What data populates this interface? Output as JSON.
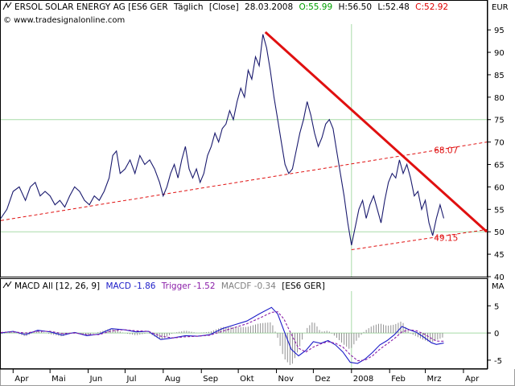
{
  "header": {
    "title": "ERSOL SOLAR ENERGY AG [ES6 GER",
    "interval": "Täglich",
    "mode": "[Close]",
    "date": "28.03.2008",
    "open": "O:55.99",
    "high": "H:56.50",
    "low": "L:52.48",
    "close": "C:52.92",
    "website": "© www.tradesignalonline.com",
    "currency": "EUR"
  },
  "macd_header": {
    "name": "MACD All [12, 26, 9]",
    "macd": "MACD -1.86",
    "trigger": "Trigger -1.52",
    "macdf": "MACDF -0.34",
    "symbol": "[ES6 GER]",
    "axis_label": "MA"
  },
  "colors": {
    "price": "#1a1a6e",
    "trend": "#e01010",
    "channel": "#e01010",
    "macd": "#1c1cc8",
    "trigger": "#8a1ea8",
    "histogram": "#909090",
    "open": "#00a000",
    "high": "#000000",
    "low": "#000000",
    "close": "#e00000",
    "grid": "#a8dca8"
  },
  "chart_data": [
    {
      "type": "line",
      "title": "ERSOL SOLAR ENERGY AG [ES6 GER",
      "ylabel": "EUR",
      "ylim": [
        40,
        97
      ],
      "y_ticks": [
        40,
        45,
        50,
        55,
        60,
        65,
        70,
        75,
        80,
        85,
        90,
        95
      ],
      "x_months": [
        {
          "label": "Apr",
          "day": 0
        },
        {
          "label": "Mai",
          "day": 30
        },
        {
          "label": "Jun",
          "day": 61
        },
        {
          "label": "Jul",
          "day": 91
        },
        {
          "label": "Aug",
          "day": 122
        },
        {
          "label": "Sep",
          "day": 153
        },
        {
          "label": "Okt",
          "day": 183
        },
        {
          "label": "Nov",
          "day": 214
        },
        {
          "label": "Dez",
          "day": 244
        },
        {
          "label": "2008",
          "day": 275
        },
        {
          "label": "Feb",
          "day": 306
        },
        {
          "label": "Mrz",
          "day": 335
        },
        {
          "label": "Apr",
          "day": 366
        }
      ],
      "xlim": [
        -10,
        385
      ],
      "series": [
        {
          "key": "close",
          "points": [
            [
              -10,
              53
            ],
            [
              -5,
              55
            ],
            [
              0,
              59
            ],
            [
              5,
              60
            ],
            [
              10,
              57
            ],
            [
              14,
              60
            ],
            [
              18,
              61
            ],
            [
              22,
              58
            ],
            [
              26,
              59
            ],
            [
              30,
              58
            ],
            [
              34,
              56
            ],
            [
              38,
              57
            ],
            [
              42,
              55.5
            ],
            [
              46,
              58
            ],
            [
              50,
              60
            ],
            [
              54,
              59
            ],
            [
              58,
              57
            ],
            [
              62,
              56
            ],
            [
              66,
              58
            ],
            [
              70,
              57
            ],
            [
              74,
              59
            ],
            [
              78,
              62
            ],
            [
              81,
              67
            ],
            [
              84,
              68
            ],
            [
              87,
              63
            ],
            [
              91,
              64
            ],
            [
              95,
              66
            ],
            [
              99,
              63
            ],
            [
              103,
              67
            ],
            [
              107,
              65
            ],
            [
              111,
              66
            ],
            [
              115,
              64
            ],
            [
              119,
              61
            ],
            [
              122,
              58
            ],
            [
              125,
              60
            ],
            [
              128,
              63
            ],
            [
              131,
              65
            ],
            [
              134,
              62
            ],
            [
              137,
              66
            ],
            [
              140,
              69
            ],
            [
              143,
              64
            ],
            [
              146,
              62
            ],
            [
              149,
              64
            ],
            [
              152,
              61
            ],
            [
              155,
              63
            ],
            [
              158,
              67
            ],
            [
              161,
              69
            ],
            [
              164,
              72
            ],
            [
              167,
              70
            ],
            [
              170,
              73
            ],
            [
              173,
              74
            ],
            [
              176,
              77
            ],
            [
              179,
              75
            ],
            [
              182,
              79
            ],
            [
              185,
              82
            ],
            [
              188,
              80
            ],
            [
              191,
              86
            ],
            [
              194,
              84
            ],
            [
              197,
              89
            ],
            [
              200,
              87
            ],
            [
              203,
              94
            ],
            [
              206,
              91
            ],
            [
              209,
              86
            ],
            [
              212,
              80
            ],
            [
              215,
              75
            ],
            [
              218,
              70
            ],
            [
              221,
              65
            ],
            [
              224,
              63
            ],
            [
              227,
              64
            ],
            [
              230,
              68
            ],
            [
              233,
              72
            ],
            [
              236,
              75
            ],
            [
              239,
              79
            ],
            [
              242,
              76
            ],
            [
              245,
              72
            ],
            [
              248,
              69
            ],
            [
              251,
              71
            ],
            [
              254,
              74
            ],
            [
              257,
              75
            ],
            [
              260,
              73
            ],
            [
              263,
              68
            ],
            [
              266,
              63
            ],
            [
              269,
              58
            ],
            [
              272,
              52
            ],
            [
              275,
              47
            ],
            [
              278,
              51
            ],
            [
              281,
              55
            ],
            [
              284,
              57
            ],
            [
              287,
              53
            ],
            [
              290,
              56
            ],
            [
              293,
              58
            ],
            [
              296,
              55
            ],
            [
              299,
              52
            ],
            [
              302,
              57
            ],
            [
              305,
              61
            ],
            [
              308,
              63
            ],
            [
              311,
              62
            ],
            [
              314,
              66
            ],
            [
              317,
              63
            ],
            [
              320,
              65
            ],
            [
              323,
              62
            ],
            [
              326,
              58
            ],
            [
              329,
              59
            ],
            [
              332,
              55
            ],
            [
              335,
              57
            ],
            [
              338,
              52
            ],
            [
              341,
              49.15
            ],
            [
              344,
              53
            ],
            [
              347,
              56
            ],
            [
              350,
              53
            ]
          ]
        }
      ],
      "lines": [
        {
          "key": "resistance",
          "style": "solid",
          "points": [
            [
              205,
              94.5
            ],
            [
              385,
              50
            ]
          ]
        },
        {
          "key": "support_upper",
          "style": "dashed",
          "points": [
            [
              -10,
              52.5
            ],
            [
              385,
              70
            ]
          ]
        },
        {
          "key": "support_lower",
          "style": "dashed",
          "points": [
            [
              275,
              46
            ],
            [
              385,
              50.5
            ]
          ]
        }
      ],
      "annotations": [
        {
          "text": "68.07",
          "x": 342,
          "y": 67.5
        },
        {
          "text": "49.15",
          "x": 342,
          "y": 48
        }
      ]
    },
    {
      "type": "line",
      "title": "MACD All [12, 26, 9]",
      "ylabel": "MA",
      "ylim": [
        -6.5,
        8
      ],
      "y_ticks": [
        -5,
        0,
        5
      ],
      "xlim": [
        -10,
        385
      ],
      "series": [
        {
          "key": "macd",
          "points": [
            [
              -10,
              0
            ],
            [
              0,
              0.3
            ],
            [
              10,
              -0.3
            ],
            [
              20,
              0.5
            ],
            [
              30,
              0.2
            ],
            [
              40,
              -0.4
            ],
            [
              50,
              0.1
            ],
            [
              60,
              -0.5
            ],
            [
              70,
              -0.2
            ],
            [
              80,
              0.8
            ],
            [
              90,
              0.6
            ],
            [
              100,
              0.2
            ],
            [
              110,
              0.3
            ],
            [
              120,
              -1.2
            ],
            [
              130,
              -0.9
            ],
            [
              140,
              -0.5
            ],
            [
              150,
              -0.6
            ],
            [
              160,
              -0.3
            ],
            [
              170,
              0.8
            ],
            [
              180,
              1.5
            ],
            [
              190,
              2.2
            ],
            [
              200,
              3.5
            ],
            [
              210,
              4.7
            ],
            [
              215,
              3.5
            ],
            [
              220,
              0.5
            ],
            [
              226,
              -3.0
            ],
            [
              232,
              -4.2
            ],
            [
              238,
              -3.2
            ],
            [
              244,
              -1.6
            ],
            [
              250,
              -1.9
            ],
            [
              256,
              -1.4
            ],
            [
              262,
              -2.2
            ],
            [
              268,
              -3.5
            ],
            [
              274,
              -5.4
            ],
            [
              280,
              -5.6
            ],
            [
              286,
              -4.8
            ],
            [
              292,
              -3.6
            ],
            [
              298,
              -2.2
            ],
            [
              304,
              -1.4
            ],
            [
              310,
              -0.3
            ],
            [
              316,
              1.2
            ],
            [
              322,
              0.6
            ],
            [
              328,
              0.1
            ],
            [
              334,
              -0.8
            ],
            [
              340,
              -1.8
            ],
            [
              344,
              -2.1
            ],
            [
              350,
              -1.86
            ]
          ]
        },
        {
          "key": "trigger",
          "points": [
            [
              -10,
              0.1
            ],
            [
              0,
              0.2
            ],
            [
              10,
              0
            ],
            [
              20,
              0.3
            ],
            [
              30,
              0.3
            ],
            [
              40,
              -0.1
            ],
            [
              50,
              0
            ],
            [
              60,
              -0.3
            ],
            [
              70,
              -0.3
            ],
            [
              80,
              0.4
            ],
            [
              90,
              0.6
            ],
            [
              100,
              0.4
            ],
            [
              110,
              0.3
            ],
            [
              120,
              -0.6
            ],
            [
              130,
              -0.9
            ],
            [
              140,
              -0.7
            ],
            [
              150,
              -0.6
            ],
            [
              160,
              -0.4
            ],
            [
              170,
              0.3
            ],
            [
              180,
              1.0
            ],
            [
              190,
              1.7
            ],
            [
              200,
              2.7
            ],
            [
              210,
              3.8
            ],
            [
              215,
              3.9
            ],
            [
              220,
              2.6
            ],
            [
              226,
              -0.2
            ],
            [
              232,
              -2.8
            ],
            [
              238,
              -3.5
            ],
            [
              244,
              -2.6
            ],
            [
              250,
              -2.0
            ],
            [
              256,
              -1.6
            ],
            [
              262,
              -1.9
            ],
            [
              268,
              -2.6
            ],
            [
              274,
              -4.0
            ],
            [
              280,
              -5.1
            ],
            [
              286,
              -5.0
            ],
            [
              292,
              -4.2
            ],
            [
              298,
              -3.0
            ],
            [
              304,
              -2.0
            ],
            [
              310,
              -1.0
            ],
            [
              316,
              0.2
            ],
            [
              322,
              0.6
            ],
            [
              328,
              0.4
            ],
            [
              334,
              -0.2
            ],
            [
              340,
              -1.0
            ],
            [
              344,
              -1.5
            ],
            [
              350,
              -1.52
            ]
          ]
        }
      ]
    }
  ]
}
